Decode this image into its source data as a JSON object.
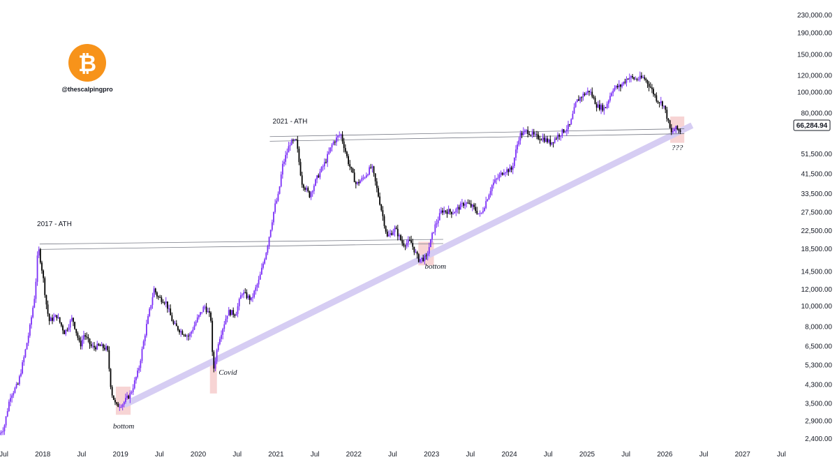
{
  "chart_data": {
    "type": "candlestick",
    "symbol": "BTC",
    "handle": "@thescalpingpro",
    "scale": "log",
    "current_price": "66,284.94",
    "y_ticks": [
      "230,000.00",
      "190,000.00",
      "150,000.00",
      "120,000.00",
      "100,000.00",
      "80,000.00",
      "51,500.00",
      "41,500.00",
      "33,500.00",
      "27,500.00",
      "22,500.00",
      "18,500.00",
      "14,500.00",
      "12,000.00",
      "10,000.00",
      "8,000.00",
      "6,500.00",
      "5,300.00",
      "4,300.00",
      "3,500.00",
      "2,900.00",
      "2,400.00"
    ],
    "y_tick_values": [
      230000,
      190000,
      150000,
      120000,
      100000,
      80000,
      51500,
      41500,
      33500,
      27500,
      22500,
      18500,
      14500,
      12000,
      10000,
      8000,
      6500,
      5300,
      4300,
      3500,
      2900,
      2400
    ],
    "x_ticks": [
      {
        "label": "Jul",
        "t": 2017.5
      },
      {
        "label": "2018",
        "t": 2018.0
      },
      {
        "label": "Jul",
        "t": 2018.5
      },
      {
        "label": "2019",
        "t": 2019.0
      },
      {
        "label": "Jul",
        "t": 2019.5
      },
      {
        "label": "2020",
        "t": 2020.0
      },
      {
        "label": "Jul",
        "t": 2020.5
      },
      {
        "label": "2021",
        "t": 2021.0
      },
      {
        "label": "Jul",
        "t": 2021.5
      },
      {
        "label": "2022",
        "t": 2022.0
      },
      {
        "label": "Jul",
        "t": 2022.5
      },
      {
        "label": "2023",
        "t": 2023.0
      },
      {
        "label": "Jul",
        "t": 2023.5
      },
      {
        "label": "2024",
        "t": 2024.0
      },
      {
        "label": "Jul",
        "t": 2024.5
      },
      {
        "label": "2025",
        "t": 2025.0
      },
      {
        "label": "Jul",
        "t": 2025.5
      },
      {
        "label": "2026",
        "t": 2026.0
      },
      {
        "label": "Jul",
        "t": 2026.5
      },
      {
        "label": "2027",
        "t": 2027.0
      },
      {
        "label": "Jul",
        "t": 2027.5
      }
    ],
    "x_range": [
      2017.45,
      2027.55
    ],
    "y_range": [
      2200,
      270000
    ],
    "price_path": [
      [
        2017.45,
        2500
      ],
      [
        2017.52,
        2700
      ],
      [
        2017.6,
        3800
      ],
      [
        2017.7,
        4300
      ],
      [
        2017.78,
        5800
      ],
      [
        2017.85,
        7800
      ],
      [
        2017.92,
        11500
      ],
      [
        2017.96,
        19000
      ],
      [
        2018.02,
        14000
      ],
      [
        2018.06,
        10500
      ],
      [
        2018.1,
        8500
      ],
      [
        2018.2,
        9000
      ],
      [
        2018.3,
        7500
      ],
      [
        2018.4,
        8800
      ],
      [
        2018.5,
        6500
      ],
      [
        2018.55,
        7400
      ],
      [
        2018.65,
        6400
      ],
      [
        2018.75,
        6500
      ],
      [
        2018.85,
        6300
      ],
      [
        2018.9,
        4000
      ],
      [
        2018.96,
        3400
      ],
      [
        2019.05,
        3500
      ],
      [
        2019.15,
        3900
      ],
      [
        2019.25,
        5000
      ],
      [
        2019.35,
        8000
      ],
      [
        2019.45,
        12000
      ],
      [
        2019.5,
        11000
      ],
      [
        2019.6,
        10500
      ],
      [
        2019.7,
        8200
      ],
      [
        2019.8,
        7600
      ],
      [
        2019.9,
        7200
      ],
      [
        2020.0,
        8600
      ],
      [
        2020.1,
        10000
      ],
      [
        2020.18,
        8800
      ],
      [
        2020.21,
        4900
      ],
      [
        2020.28,
        6900
      ],
      [
        2020.4,
        9400
      ],
      [
        2020.5,
        9200
      ],
      [
        2020.58,
        11600
      ],
      [
        2020.7,
        10700
      ],
      [
        2020.8,
        13200
      ],
      [
        2020.9,
        18500
      ],
      [
        2021.0,
        29000
      ],
      [
        2021.05,
        33000
      ],
      [
        2021.1,
        45000
      ],
      [
        2021.2,
        58000
      ],
      [
        2021.28,
        59000
      ],
      [
        2021.35,
        38000
      ],
      [
        2021.45,
        33000
      ],
      [
        2021.55,
        40000
      ],
      [
        2021.65,
        47000
      ],
      [
        2021.75,
        58000
      ],
      [
        2021.85,
        64000
      ],
      [
        2021.95,
        47000
      ],
      [
        2022.05,
        37000
      ],
      [
        2022.15,
        40000
      ],
      [
        2022.25,
        45000
      ],
      [
        2022.35,
        31000
      ],
      [
        2022.45,
        21000
      ],
      [
        2022.55,
        23000
      ],
      [
        2022.65,
        19500
      ],
      [
        2022.75,
        20000
      ],
      [
        2022.85,
        16500
      ],
      [
        2022.95,
        16800
      ],
      [
        2023.05,
        23000
      ],
      [
        2023.15,
        28000
      ],
      [
        2023.3,
        27500
      ],
      [
        2023.45,
        30500
      ],
      [
        2023.55,
        29000
      ],
      [
        2023.65,
        26500
      ],
      [
        2023.8,
        37000
      ],
      [
        2023.95,
        43000
      ],
      [
        2024.05,
        43500
      ],
      [
        2024.15,
        63000
      ],
      [
        2024.25,
        66000
      ],
      [
        2024.35,
        62000
      ],
      [
        2024.45,
        61000
      ],
      [
        2024.55,
        58000
      ],
      [
        2024.65,
        63000
      ],
      [
        2024.8,
        70000
      ],
      [
        2024.88,
        90000
      ],
      [
        2024.95,
        96000
      ],
      [
        2025.05,
        102000
      ],
      [
        2025.15,
        86000
      ],
      [
        2025.25,
        84000
      ],
      [
        2025.35,
        104000
      ],
      [
        2025.45,
        107000
      ],
      [
        2025.55,
        118000
      ],
      [
        2025.65,
        115000
      ],
      [
        2025.75,
        117000
      ],
      [
        2025.82,
        108000
      ],
      [
        2025.92,
        92000
      ],
      [
        2026.0,
        88000
      ],
      [
        2026.05,
        76000
      ],
      [
        2026.1,
        64000
      ],
      [
        2026.15,
        68000
      ],
      [
        2026.2,
        66285
      ]
    ],
    "support_line": {
      "from": [
        2019.05,
        3450
      ],
      "to": [
        2026.35,
        70000
      ]
    },
    "resistance_2017": {
      "from": [
        2017.96,
        19500
      ],
      "to": [
        2023.15,
        20500
      ],
      "lower": [
        2017.96,
        18400
      ],
      "lower_to": [
        2023.15,
        19600
      ]
    },
    "resistance_2021": {
      "from": [
        2020.92,
        62000
      ],
      "to": [
        2026.25,
        67500
      ],
      "lower": [
        2020.92,
        59000
      ],
      "lower_to": [
        2026.25,
        64000
      ]
    },
    "highlight_zones": [
      {
        "t0": 2018.94,
        "t1": 2019.13,
        "p0": 3100,
        "p1": 4200
      },
      {
        "t0": 2020.15,
        "t1": 2020.24,
        "p0": 3900,
        "p1": 5500
      },
      {
        "t0": 2022.83,
        "t1": 2023.03,
        "p0": 15500,
        "p1": 20000
      },
      {
        "t0": 2026.07,
        "t1": 2026.25,
        "p0": 58000,
        "p1": 77000
      }
    ],
    "annotations": {
      "ath_2017": "2017 - ATH",
      "ath_2021": "2021 - ATH",
      "bottom_2019": "bottom",
      "covid": "Covid",
      "bottom_2022": "bottom",
      "question": "???"
    },
    "colors": {
      "bull": "#7b2ff7",
      "bear": "#000000",
      "support": "#d6cdf3",
      "zone": "#f4c6c6",
      "logo": "#f7931a",
      "hline": "#787b86"
    }
  }
}
